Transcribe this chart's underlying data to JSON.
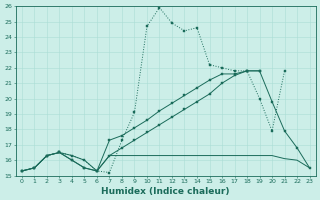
{
  "xlabel": "Humidex (Indice chaleur)",
  "bg_color": "#cceee8",
  "line_color": "#1a6b5a",
  "grid_color": "#aaddd5",
  "xlim": [
    -0.5,
    23.5
  ],
  "ylim": [
    15,
    26
  ],
  "xticks": [
    0,
    1,
    2,
    3,
    4,
    5,
    6,
    7,
    8,
    9,
    10,
    11,
    12,
    13,
    14,
    15,
    16,
    17,
    18,
    19,
    20,
    21,
    22,
    23
  ],
  "yticks": [
    15,
    16,
    17,
    18,
    19,
    20,
    21,
    22,
    23,
    24,
    25,
    26
  ],
  "series1_x": [
    0,
    1,
    2,
    3,
    4,
    5,
    6,
    7,
    8,
    9,
    10,
    11,
    12,
    13,
    14,
    15,
    16,
    17,
    18,
    19,
    20,
    21
  ],
  "series1_y": [
    15.3,
    15.5,
    16.3,
    16.5,
    16.3,
    16.0,
    15.3,
    15.2,
    17.3,
    19.1,
    24.7,
    25.9,
    24.9,
    24.4,
    24.6,
    22.2,
    22.0,
    21.8,
    21.8,
    20.0,
    17.9,
    21.8
  ],
  "series2_x": [
    0,
    1,
    2,
    3,
    4,
    5,
    6,
    7,
    8,
    9,
    10,
    11,
    12,
    13,
    14,
    15,
    16,
    17,
    18,
    19,
    20,
    21,
    22,
    23
  ],
  "series2_y": [
    15.3,
    15.5,
    16.3,
    16.5,
    16.3,
    16.0,
    15.3,
    16.3,
    16.3,
    16.3,
    16.3,
    16.3,
    16.3,
    16.3,
    16.3,
    16.3,
    16.3,
    16.3,
    16.3,
    16.3,
    16.3,
    16.1,
    16.0,
    15.5
  ],
  "series3_x": [
    0,
    1,
    2,
    3,
    4,
    5,
    6,
    7,
    8,
    9,
    10,
    11,
    12,
    13,
    14,
    15,
    16,
    17,
    18,
    19,
    20,
    21,
    22,
    23
  ],
  "series3_y": [
    15.3,
    15.5,
    16.3,
    16.5,
    16.0,
    15.5,
    15.3,
    17.3,
    17.6,
    18.1,
    18.6,
    19.2,
    19.7,
    20.2,
    20.7,
    21.2,
    21.6,
    21.6,
    21.8,
    21.8,
    19.8,
    17.9,
    16.8,
    15.5
  ],
  "series4_x": [
    0,
    1,
    2,
    3,
    4,
    5,
    6,
    7,
    8,
    9,
    10,
    11,
    12,
    13,
    14,
    15,
    16,
    17,
    18,
    19
  ],
  "series4_y": [
    15.3,
    15.5,
    16.3,
    16.5,
    16.0,
    15.5,
    15.3,
    16.3,
    16.8,
    17.3,
    17.8,
    18.3,
    18.8,
    19.3,
    19.8,
    20.3,
    21.0,
    21.5,
    21.8,
    21.8
  ]
}
